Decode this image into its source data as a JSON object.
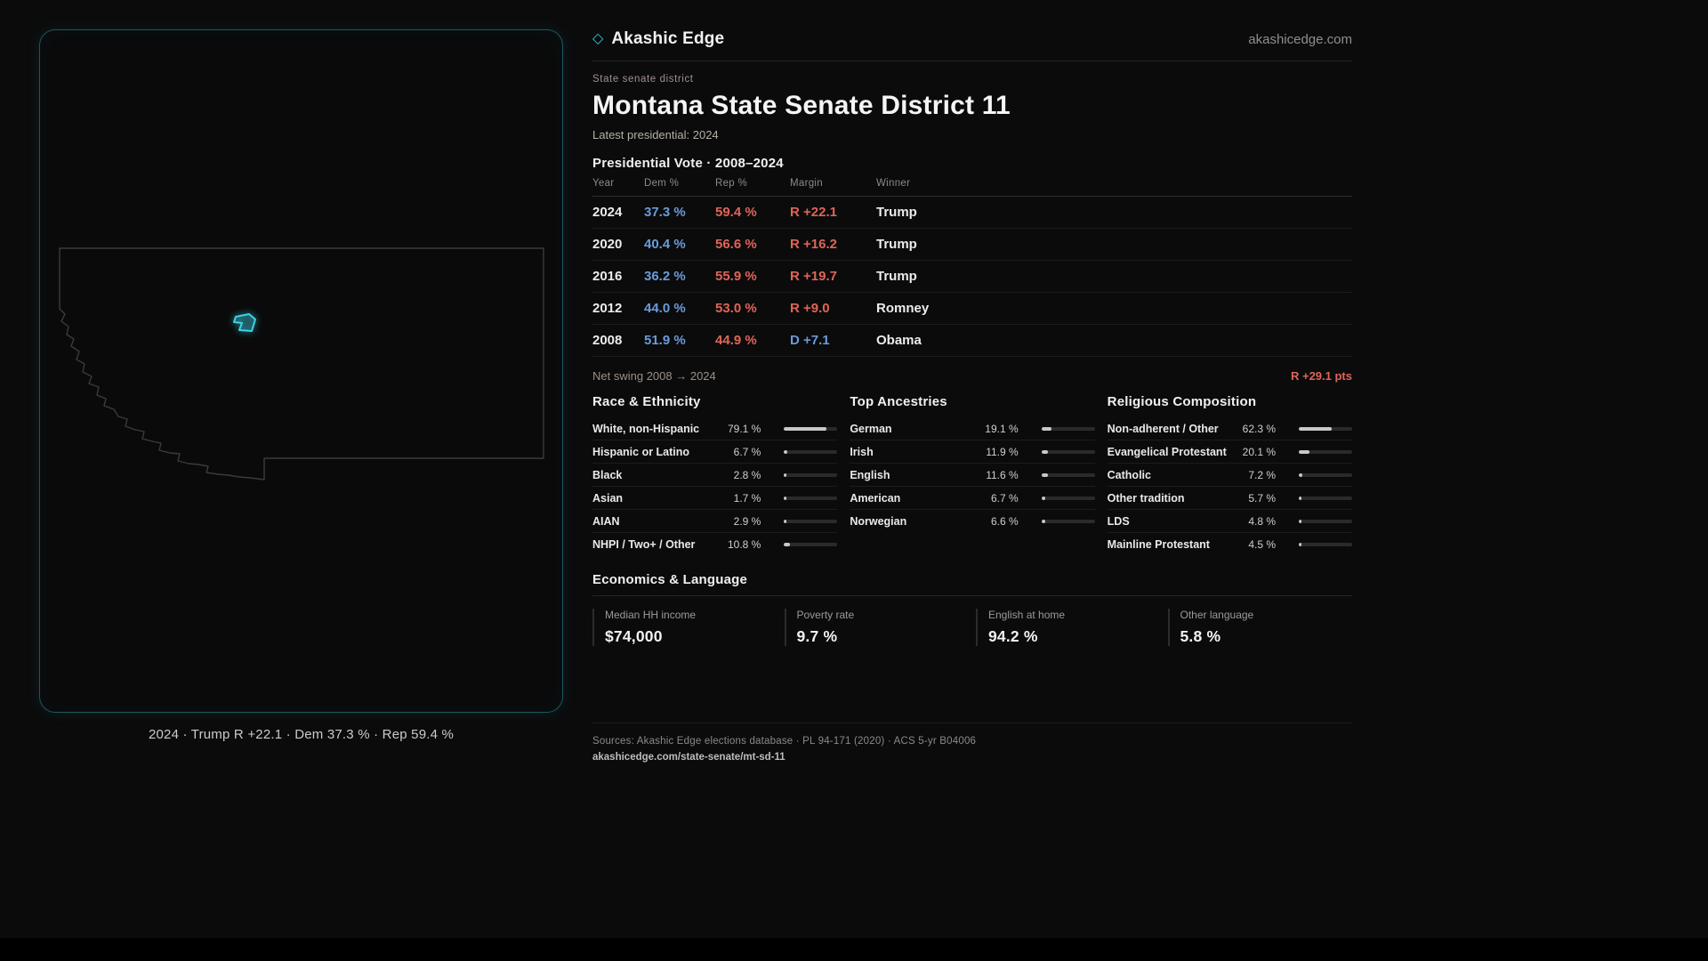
{
  "brand": {
    "diamond_icon": "◇",
    "name": "Akashic Edge",
    "domain": "akashicedge.com"
  },
  "header": {
    "kicker": "State senate district",
    "title": "Montana State Senate District 11",
    "subtitle": "Latest presidential: 2024"
  },
  "map_panel": {
    "region_name": "Montana",
    "caption": "2024 · Trump R +22.1 · Dem 37.3 % · Rep 59.4 %"
  },
  "vote_table": {
    "title": "Presidential Vote · 2008–2024",
    "columns": [
      "Year",
      "Dem %",
      "Rep %",
      "Margin",
      "Winner"
    ],
    "rows": [
      {
        "year": "2024",
        "dem": "37.3 %",
        "rep": "59.4 %",
        "margin": "R +22.1",
        "margin_party": "R",
        "winner": "Trump"
      },
      {
        "year": "2020",
        "dem": "40.4 %",
        "rep": "56.6 %",
        "margin": "R +16.2",
        "margin_party": "R",
        "winner": "Trump"
      },
      {
        "year": "2016",
        "dem": "36.2 %",
        "rep": "55.9 %",
        "margin": "R +19.7",
        "margin_party": "R",
        "winner": "Trump"
      },
      {
        "year": "2012",
        "dem": "44.0 %",
        "rep": "53.0 %",
        "margin": "R +9.0",
        "margin_party": "R",
        "winner": "Romney"
      },
      {
        "year": "2008",
        "dem": "51.9 %",
        "rep": "44.9 %",
        "margin": "D +7.1",
        "margin_party": "D",
        "winner": "Obama"
      }
    ],
    "net_swing_label": "Net swing 2008 → 2024",
    "net_swing_value": "R +29.1 pts"
  },
  "demographics": [
    {
      "title": "Race & Ethnicity",
      "rows": [
        {
          "label": "White, non-Hispanic",
          "value": "79.1 %",
          "pct": 79.1
        },
        {
          "label": "Hispanic or Latino",
          "value": "6.7 %",
          "pct": 6.7
        },
        {
          "label": "Black",
          "value": "2.8 %",
          "pct": 2.8
        },
        {
          "label": "Asian",
          "value": "1.7 %",
          "pct": 1.7
        },
        {
          "label": "AIAN",
          "value": "2.9 %",
          "pct": 2.9
        },
        {
          "label": "NHPI / Two+ / Other",
          "value": "10.8 %",
          "pct": 10.8
        }
      ]
    },
    {
      "title": "Top Ancestries",
      "rows": [
        {
          "label": "German",
          "value": "19.1 %",
          "pct": 19.1
        },
        {
          "label": "Irish",
          "value": "11.9 %",
          "pct": 11.9
        },
        {
          "label": "English",
          "value": "11.6 %",
          "pct": 11.6
        },
        {
          "label": "American",
          "value": "6.7 %",
          "pct": 6.7
        },
        {
          "label": "Norwegian",
          "value": "6.6 %",
          "pct": 6.6
        }
      ]
    },
    {
      "title": "Religious Composition",
      "rows": [
        {
          "label": "Non-adherent / Other",
          "value": "62.3 %",
          "pct": 62.3
        },
        {
          "label": "Evangelical Protestant",
          "value": "20.1 %",
          "pct": 20.1
        },
        {
          "label": "Catholic",
          "value": "7.2 %",
          "pct": 7.2
        },
        {
          "label": "Other tradition",
          "value": "5.7 %",
          "pct": 5.7
        },
        {
          "label": "LDS",
          "value": "4.8 %",
          "pct": 4.8
        },
        {
          "label": "Mainline Protestant",
          "value": "4.5 %",
          "pct": 4.5
        }
      ]
    }
  ],
  "economics": {
    "title": "Economics & Language",
    "stats": [
      {
        "label": "Median HH income",
        "value": "$74,000"
      },
      {
        "label": "Poverty rate",
        "value": "9.7 %"
      },
      {
        "label": "English at home",
        "value": "94.2 %"
      },
      {
        "label": "Other language",
        "value": "5.8 %"
      }
    ]
  },
  "footer": {
    "sources": "Sources: Akashic Edge elections database · PL 94-171 (2020) · ACS 5-yr B04006",
    "permalink": "akashicedge.com/state-senate/mt-sd-11"
  },
  "colors": {
    "accent": "#35c6d9",
    "dem": "#6b9bd8",
    "rep": "#df6557",
    "background": "#0b0b0c"
  }
}
